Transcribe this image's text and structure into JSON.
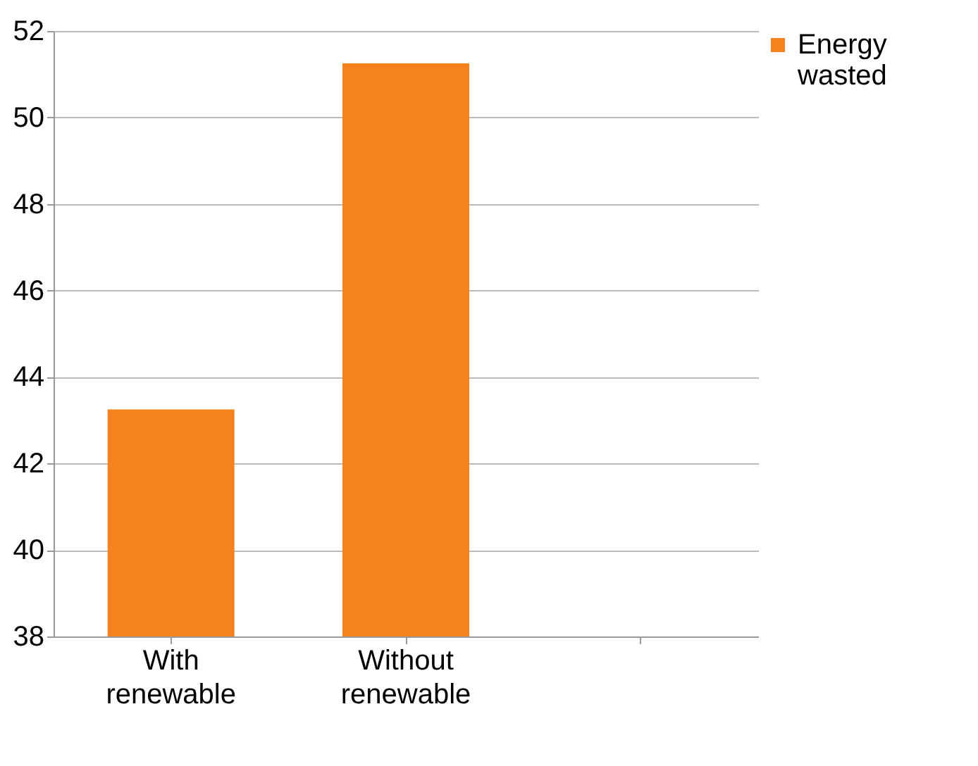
{
  "chart_data": {
    "type": "bar",
    "categories": [
      "With renewable",
      "Without renewable",
      null
    ],
    "series": [
      {
        "name": "Energy wasted",
        "color": "#f5821f",
        "values": [
          43.25,
          51.25,
          null
        ]
      }
    ],
    "ylim": [
      38,
      52
    ],
    "yticks": [
      38,
      40,
      42,
      44,
      46,
      48,
      50,
      52
    ],
    "grid": "y",
    "legend": "right"
  }
}
